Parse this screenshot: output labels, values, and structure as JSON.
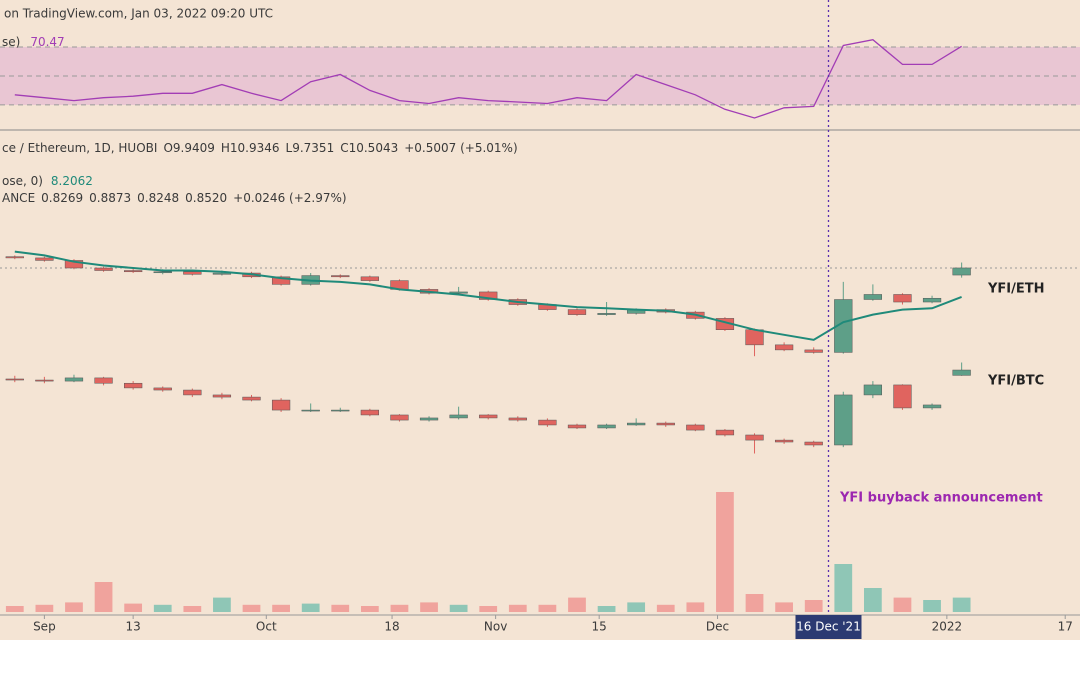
{
  "chart_data": {
    "type": "candlestick",
    "header": "on TradingView.com, Jan 03, 2022 09:20 UTC",
    "x": [
      -4,
      0,
      4,
      8,
      12,
      16,
      20,
      24,
      28,
      32,
      36,
      40,
      44,
      48,
      52,
      56,
      60,
      64,
      68,
      72,
      76,
      80,
      84,
      88,
      92,
      96,
      100,
      104,
      108,
      112,
      116,
      120,
      124
    ],
    "xlim": [
      -6,
      140
    ],
    "xticks": [
      {
        "value": 0,
        "label": "Sep"
      },
      {
        "value": 12,
        "label": "13"
      },
      {
        "value": 30,
        "label": "Oct"
      },
      {
        "value": 47,
        "label": "18"
      },
      {
        "value": 61,
        "label": "Nov"
      },
      {
        "value": 75,
        "label": "15"
      },
      {
        "value": 91,
        "label": "Dec"
      },
      {
        "value": 122,
        "label": "2022"
      },
      {
        "value": 138,
        "label": "17"
      }
    ],
    "highlight_tick": {
      "value": 106,
      "label": "16 Dec '21"
    },
    "annotation": {
      "text": "YFI buyback announcement",
      "x": 106
    },
    "rsi": {
      "legend_name": "se)",
      "legend_value": "70.47",
      "color": "#a23db5",
      "ylim": [
        12,
        100
      ],
      "band": [
        30,
        70
      ],
      "midline": 50,
      "values": [
        37,
        35,
        33,
        35,
        36,
        38,
        38,
        44,
        38,
        33,
        46,
        51,
        40,
        33,
        31,
        35,
        33,
        32,
        31,
        35,
        33,
        51,
        44,
        37,
        27,
        21,
        28,
        29,
        71,
        75,
        58,
        58,
        70.47
      ]
    },
    "series": [
      {
        "name": "YFI/ETH",
        "ylim": [
          3,
          13
        ],
        "legend": [
          "ce / Ethereum, 1D, HUOBI",
          "O9.9409",
          "H10.9346",
          "L9.7351",
          "C10.5043",
          "+0.5007 (+5.01%)"
        ],
        "open": [
          11.4,
          11.3,
          11.1,
          10.5,
          10.3,
          10.2,
          10.2,
          10.0,
          10.1,
          9.8,
          9.2,
          9.9,
          9.8,
          9.5,
          8.8,
          8.5,
          8.6,
          8.0,
          7.6,
          7.2,
          6.8,
          6.9,
          7.2,
          7.0,
          6.5,
          5.6,
          4.4,
          4.0,
          3.8,
          8.0,
          8.4,
          7.8,
          9.9409
        ],
        "high": [
          11.5,
          11.4,
          11.2,
          10.6,
          10.5,
          10.4,
          10.3,
          10.3,
          10.2,
          9.9,
          10.1,
          10.0,
          9.9,
          9.6,
          8.9,
          9.0,
          8.7,
          8.1,
          7.7,
          7.3,
          7.8,
          7.3,
          7.3,
          7.1,
          6.6,
          5.7,
          4.6,
          4.2,
          9.4,
          9.2,
          8.5,
          8.3,
          10.9346
        ],
        "low": [
          11.2,
          11.0,
          10.4,
          10.2,
          10.1,
          10.0,
          9.9,
          9.9,
          9.7,
          9.1,
          9.1,
          9.7,
          9.4,
          8.7,
          8.4,
          8.4,
          7.9,
          7.5,
          7.1,
          6.7,
          6.7,
          6.8,
          6.9,
          6.4,
          5.5,
          3.5,
          3.9,
          3.7,
          3.7,
          7.9,
          7.6,
          7.7,
          9.7351
        ],
        "close": [
          11.3,
          11.1,
          10.5,
          10.3,
          10.2,
          10.2,
          10.0,
          10.1,
          9.8,
          9.2,
          9.9,
          9.8,
          9.5,
          8.8,
          8.5,
          8.6,
          8.0,
          7.6,
          7.2,
          6.8,
          6.9,
          7.2,
          7.0,
          6.5,
          5.6,
          4.4,
          4.0,
          3.8,
          8.0,
          8.4,
          7.8,
          8.1,
          10.5043
        ],
        "ma": {
          "legend_name": "ose, 0)",
          "legend_value": "8.2062",
          "color": "#1f8a7a",
          "values": [
            11.8,
            11.5,
            11.0,
            10.7,
            10.5,
            10.3,
            10.3,
            10.2,
            10.0,
            9.7,
            9.5,
            9.4,
            9.2,
            8.8,
            8.6,
            8.4,
            8.1,
            7.8,
            7.6,
            7.4,
            7.3,
            7.2,
            7.1,
            6.8,
            6.2,
            5.6,
            5.2,
            4.8,
            6.2,
            6.8,
            7.2,
            7.3,
            8.2062
          ]
        }
      },
      {
        "name": "YFI/BTC",
        "ylim": [
          0.4,
          1.0
        ],
        "legend": [
          "ANCE",
          "0.8269",
          "0.8873",
          "0.8248",
          "0.8520",
          "+0.0246 (+2.97%)"
        ],
        "open": [
          0.81,
          0.805,
          0.8,
          0.815,
          0.79,
          0.768,
          0.758,
          0.735,
          0.725,
          0.711,
          0.664,
          0.664,
          0.664,
          0.641,
          0.617,
          0.627,
          0.641,
          0.627,
          0.617,
          0.594,
          0.58,
          0.594,
          0.603,
          0.594,
          0.57,
          0.547,
          0.523,
          0.514,
          0.5,
          0.735,
          0.782,
          0.674,
          0.8269
        ],
        "high": [
          0.825,
          0.82,
          0.83,
          0.82,
          0.8,
          0.775,
          0.765,
          0.745,
          0.735,
          0.72,
          0.695,
          0.675,
          0.67,
          0.645,
          0.635,
          0.68,
          0.645,
          0.635,
          0.625,
          0.6,
          0.6,
          0.625,
          0.61,
          0.6,
          0.575,
          0.555,
          0.53,
          0.52,
          0.75,
          0.8,
          0.785,
          0.695,
          0.8873
        ],
        "low": [
          0.795,
          0.79,
          0.795,
          0.78,
          0.76,
          0.75,
          0.725,
          0.715,
          0.705,
          0.655,
          0.655,
          0.655,
          0.635,
          0.61,
          0.61,
          0.62,
          0.62,
          0.61,
          0.585,
          0.575,
          0.575,
          0.59,
          0.585,
          0.565,
          0.54,
          0.46,
          0.505,
          0.49,
          0.49,
          0.72,
          0.665,
          0.665,
          0.8248
        ],
        "close": [
          0.805,
          0.8,
          0.815,
          0.79,
          0.768,
          0.758,
          0.735,
          0.725,
          0.711,
          0.664,
          0.664,
          0.664,
          0.641,
          0.617,
          0.627,
          0.641,
          0.627,
          0.617,
          0.594,
          0.58,
          0.594,
          0.603,
          0.594,
          0.57,
          0.547,
          0.523,
          0.514,
          0.5,
          0.735,
          0.782,
          0.674,
          0.688,
          0.852
        ]
      }
    ],
    "volume": {
      "ylim": [
        0,
        100
      ],
      "values": [
        5,
        6,
        8,
        25,
        7,
        6,
        5,
        12,
        6,
        6,
        7,
        6,
        5,
        6,
        8,
        6,
        5,
        6,
        6,
        12,
        5,
        8,
        6,
        8,
        100,
        15,
        8,
        10,
        40,
        20,
        12,
        10,
        12
      ]
    },
    "up_color": "#5e9f88",
    "down_color": "#e0645f",
    "vol_up_color": "#8fc6b6",
    "vol_down_color": "#f0a39d"
  }
}
